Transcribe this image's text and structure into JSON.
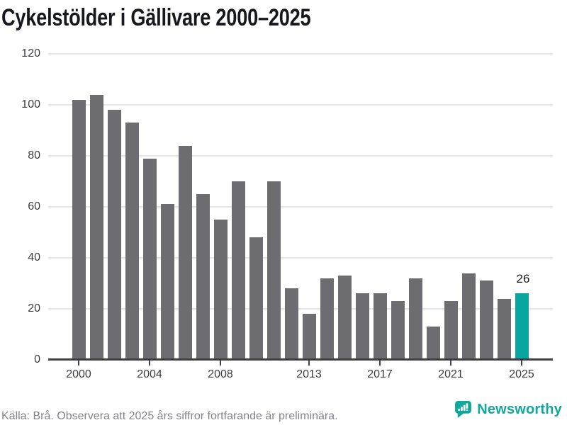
{
  "title": "Cykelstölder i Gällivare 2000–2025",
  "footer": {
    "source_note": "Källa: Brå. Observera att 2025 års siffror fortfarande är preliminära."
  },
  "branding": {
    "name": "Newsworthy",
    "logo_icon": "bar-chart-speech-bubble-icon"
  },
  "colors": {
    "bar": "#6d6d71",
    "highlight": "#07a69e",
    "brand": "#14a79e",
    "gridline": "#e6e6e6",
    "axis": "#3f3f44",
    "title_text": "#16181d",
    "tick_text": "#3b3b40",
    "footer_text": "#82828b"
  },
  "chart_data": {
    "type": "bar",
    "title": "Cykelstölder i Gällivare 2000–2025",
    "x": [
      2000,
      2001,
      2002,
      2003,
      2004,
      2005,
      2006,
      2007,
      2008,
      2009,
      2010,
      2011,
      2012,
      2013,
      2014,
      2015,
      2016,
      2017,
      2018,
      2019,
      2020,
      2021,
      2022,
      2023,
      2024,
      2025
    ],
    "values": [
      102,
      104,
      98,
      93,
      79,
      61,
      84,
      65,
      55,
      70,
      48,
      70,
      28,
      18,
      32,
      33,
      26,
      26,
      23,
      32,
      13,
      23,
      34,
      31,
      24,
      26
    ],
    "highlight_index": 25,
    "highlight_value_label": "26",
    "x_tick_labels": [
      "2000",
      "2004",
      "2008",
      "2013",
      "2017",
      "2021",
      "2025"
    ],
    "y_ticks": [
      0,
      20,
      40,
      60,
      80,
      100,
      120
    ],
    "ylim": [
      0,
      120
    ],
    "grid": true,
    "legend": "none",
    "xlabel": "",
    "ylabel": ""
  }
}
